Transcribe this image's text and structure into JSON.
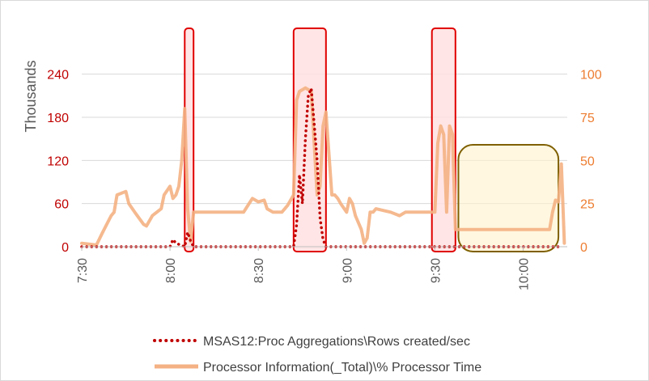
{
  "chart_data": {
    "type": "line",
    "title": "",
    "y_left": {
      "label": "Thousands",
      "ticks": [
        "0",
        "60",
        "120",
        "180",
        "240"
      ],
      "range": [
        0,
        270
      ],
      "color": "#c00000"
    },
    "y_right": {
      "ticks": [
        "0",
        "25",
        "50",
        "75",
        "100"
      ],
      "range": [
        0,
        112.5
      ],
      "color": "#ed7d31"
    },
    "x_axis": {
      "ticks": [
        "7:30",
        "8:00",
        "8:30",
        "9:00",
        "9:30",
        "10:00"
      ],
      "range_minutes": [
        450,
        615
      ]
    },
    "grid": true,
    "legend_position": "bottom",
    "highlights": [
      {
        "kind": "red",
        "from": "8:05",
        "to": "8:08"
      },
      {
        "kind": "red",
        "from": "8:42",
        "to": "8:53"
      },
      {
        "kind": "red",
        "from": "9:29",
        "to": "9:37"
      },
      {
        "kind": "olive",
        "from": "9:38",
        "to": "10:12"
      }
    ],
    "series": [
      {
        "name": "MSAS12:Proc Aggregations\\Rows created/sec",
        "axis": "left",
        "style": "dotted",
        "color": "#c00000",
        "x": [
          "7:30",
          "8:00",
          "8:01",
          "8:02",
          "8:05",
          "8:06",
          "8:07",
          "8:08",
          "8:42",
          "8:43",
          "8:44",
          "8:45",
          "8:46",
          "8:47",
          "8:48",
          "8:49",
          "8:50",
          "8:51",
          "8:52",
          "8:53",
          "8:56",
          "9:30",
          "10:12"
        ],
        "values": [
          0,
          0,
          10,
          5,
          0,
          20,
          8,
          0,
          0,
          30,
          100,
          60,
          150,
          210,
          220,
          170,
          120,
          40,
          10,
          0,
          0,
          0,
          0
        ]
      },
      {
        "name": "Processor Information(_Total)\\% Processor Time",
        "axis": "right",
        "style": "solid",
        "color": "#f4b183",
        "x": [
          "7:30",
          "7:35",
          "7:37",
          "7:40",
          "7:41",
          "7:42",
          "7:45",
          "7:46",
          "7:48",
          "7:51",
          "7:52",
          "7:54",
          "7:57",
          "7:58",
          "8:00",
          "8:01",
          "8:02",
          "8:03",
          "8:04",
          "8:05",
          "8:06",
          "8:07",
          "8:08",
          "8:10",
          "8:15",
          "8:20",
          "8:25",
          "8:28",
          "8:30",
          "8:32",
          "8:33",
          "8:35",
          "8:38",
          "8:40",
          "8:42",
          "8:43",
          "8:44",
          "8:46",
          "8:48",
          "8:50",
          "8:51",
          "8:52",
          "8:53",
          "8:55",
          "8:56",
          "8:57",
          "8:58",
          "9:00",
          "9:01",
          "9:02",
          "9:03",
          "9:05",
          "9:06",
          "9:07",
          "9:08",
          "9:09",
          "9:10",
          "9:15",
          "9:18",
          "9:20",
          "9:25",
          "9:28",
          "9:30",
          "9:31",
          "9:32",
          "9:33",
          "9:34",
          "9:35",
          "9:36",
          "9:37",
          "9:38",
          "9:45",
          "9:50",
          "9:55",
          "10:00",
          "10:05",
          "10:08",
          "10:09",
          "10:10",
          "10:11",
          "10:12",
          "10:13",
          "10:14"
        ],
        "values": [
          2,
          1,
          8,
          18,
          20,
          30,
          32,
          25,
          20,
          13,
          12,
          18,
          22,
          30,
          35,
          28,
          30,
          35,
          50,
          80,
          22,
          3,
          20,
          20,
          20,
          20,
          20,
          28,
          26,
          27,
          22,
          20,
          20,
          24,
          30,
          85,
          90,
          92,
          90,
          30,
          35,
          70,
          78,
          30,
          30,
          28,
          25,
          20,
          28,
          25,
          18,
          10,
          2,
          5,
          20,
          20,
          22,
          20,
          18,
          20,
          20,
          20,
          20,
          60,
          70,
          65,
          20,
          70,
          65,
          10,
          10,
          10,
          10,
          10,
          10,
          10,
          10,
          10,
          20,
          27,
          26,
          48,
          2
        ]
      }
    ]
  }
}
